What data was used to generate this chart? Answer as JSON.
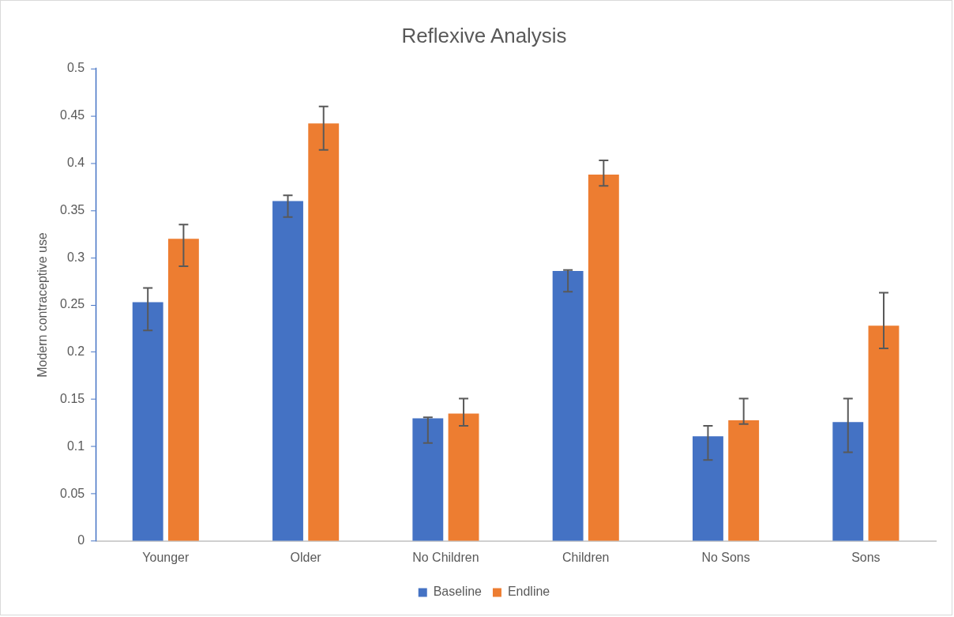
{
  "chart_data": {
    "type": "bar",
    "title": "Reflexive Analysis",
    "ylabel": "Modern contraceptive use",
    "categories": [
      "Younger",
      "Older",
      "No Children",
      "Children",
      "No Sons",
      "Sons"
    ],
    "series": [
      {
        "name": "Baseline",
        "color": "#4472c4",
        "values": [
          0.253,
          0.36,
          0.13,
          0.286,
          0.111,
          0.126
        ],
        "errors": [
          [
            0.223,
            0.268
          ],
          [
            0.343,
            0.366
          ],
          [
            0.104,
            0.131
          ],
          [
            0.264,
            0.287
          ],
          [
            0.086,
            0.122
          ],
          [
            0.094,
            0.151
          ]
        ]
      },
      {
        "name": "Endline",
        "color": "#ed7d31",
        "values": [
          0.32,
          0.442,
          0.135,
          0.388,
          0.128,
          0.228
        ],
        "errors": [
          [
            0.291,
            0.335
          ],
          [
            0.414,
            0.46
          ],
          [
            0.122,
            0.151
          ],
          [
            0.376,
            0.403
          ],
          [
            0.124,
            0.151
          ],
          [
            0.204,
            0.263
          ]
        ]
      }
    ],
    "ylim": [
      0,
      0.5
    ],
    "yticks": [
      0,
      0.05,
      0.1,
      0.15,
      0.2,
      0.25,
      0.3,
      0.35,
      0.4,
      0.45,
      0.5
    ],
    "legend": "bottom"
  }
}
